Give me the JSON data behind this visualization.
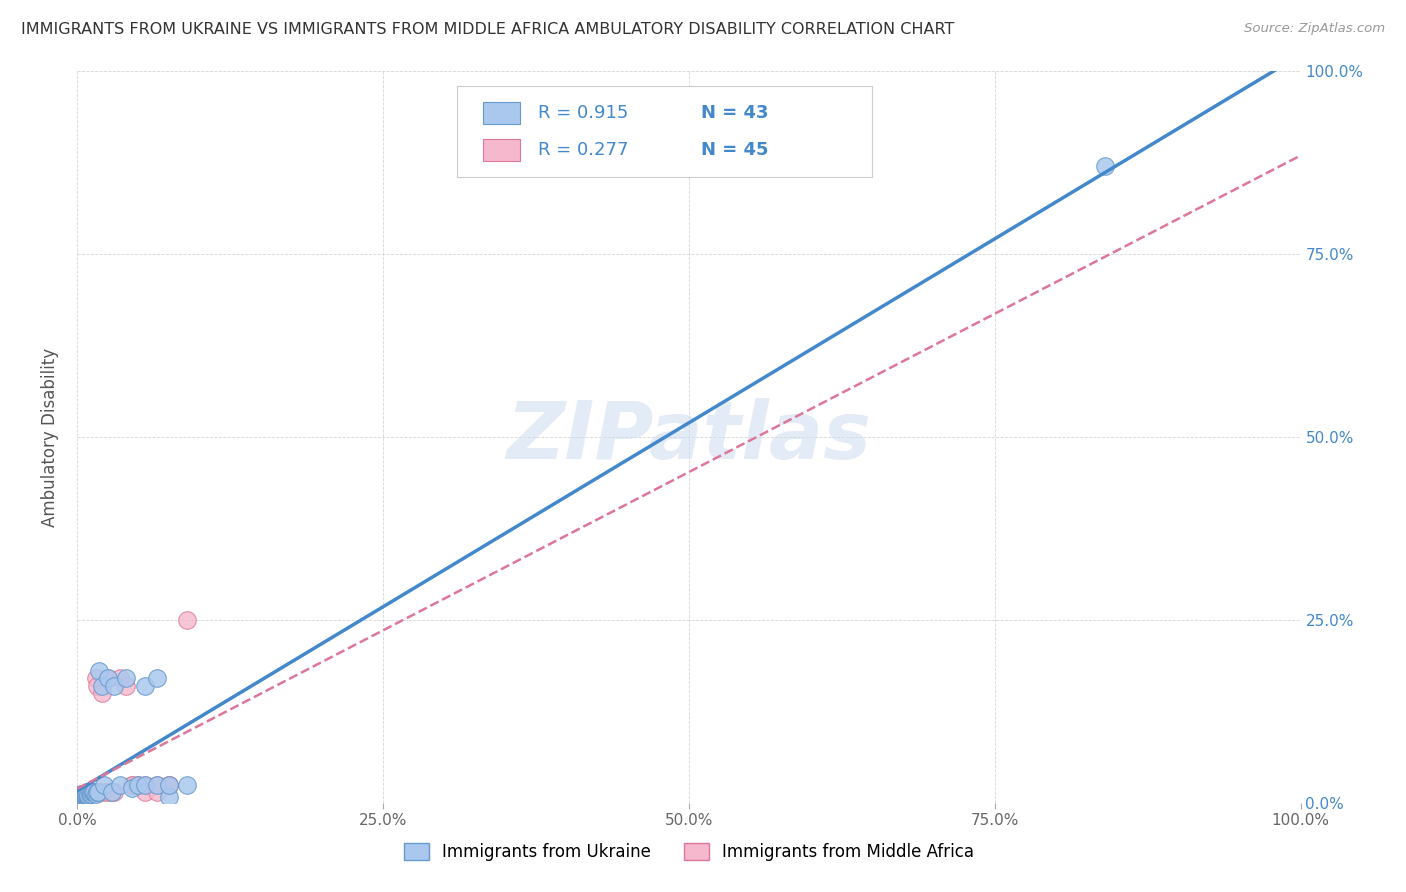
{
  "title": "IMMIGRANTS FROM UKRAINE VS IMMIGRANTS FROM MIDDLE AFRICA AMBULATORY DISABILITY CORRELATION CHART",
  "source": "Source: ZipAtlas.com",
  "ylabel": "Ambulatory Disability",
  "xlim": [
    0,
    1.0
  ],
  "ylim": [
    0,
    1.0
  ],
  "x_ticks": [
    0.0,
    0.25,
    0.5,
    0.75,
    1.0
  ],
  "y_ticks": [
    0.0,
    0.25,
    0.5,
    0.75,
    1.0
  ],
  "x_tick_labels": [
    "0.0%",
    "25.0%",
    "50.0%",
    "75.0%",
    "100.0%"
  ],
  "y_tick_labels": [
    "0.0%",
    "25.0%",
    "50.0%",
    "75.0%",
    "100.0%"
  ],
  "ukraine_color": "#aac8ee",
  "ukraine_edge_color": "#6699cc",
  "middle_africa_color": "#f5b8cc",
  "middle_africa_edge_color": "#dd7799",
  "ukraine_R": 0.915,
  "ukraine_N": 43,
  "middle_africa_R": 0.277,
  "middle_africa_N": 45,
  "ukraine_line_color": "#4488cc",
  "middle_africa_line_color": "#dd7799",
  "r_n_text_color": "#4488cc",
  "watermark": "ZIPatlas",
  "legend_ukraine_label": "Immigrants from Ukraine",
  "legend_middle_africa_label": "Immigrants from Middle Africa",
  "background_color": "#ffffff",
  "grid_color": "#cccccc",
  "title_color": "#333333",
  "axis_label_color": "#555555",
  "tick_label_color_right": "#4488cc",
  "ukraine_x": [
    0.001,
    0.002,
    0.002,
    0.003,
    0.003,
    0.004,
    0.004,
    0.005,
    0.005,
    0.006,
    0.006,
    0.007,
    0.007,
    0.008,
    0.008,
    0.009,
    0.01,
    0.01,
    0.011,
    0.012,
    0.013,
    0.014,
    0.015,
    0.016,
    0.017,
    0.018,
    0.02,
    0.022,
    0.025,
    0.028,
    0.03,
    0.035,
    0.04,
    0.045,
    0.05,
    0.055,
    0.065,
    0.075,
    0.055,
    0.065,
    0.075,
    0.09,
    0.84
  ],
  "ukraine_y": [
    0.008,
    0.008,
    0.01,
    0.008,
    0.012,
    0.01,
    0.01,
    0.01,
    0.012,
    0.01,
    0.012,
    0.01,
    0.012,
    0.012,
    0.015,
    0.01,
    0.012,
    0.015,
    0.012,
    0.015,
    0.015,
    0.015,
    0.012,
    0.015,
    0.015,
    0.18,
    0.16,
    0.025,
    0.17,
    0.015,
    0.16,
    0.025,
    0.17,
    0.02,
    0.025,
    0.025,
    0.025,
    0.008,
    0.16,
    0.17,
    0.025,
    0.025,
    0.87
  ],
  "middle_africa_x": [
    0.001,
    0.001,
    0.002,
    0.002,
    0.003,
    0.003,
    0.004,
    0.004,
    0.005,
    0.005,
    0.006,
    0.006,
    0.007,
    0.007,
    0.008,
    0.008,
    0.009,
    0.009,
    0.01,
    0.01,
    0.011,
    0.012,
    0.013,
    0.014,
    0.015,
    0.016,
    0.018,
    0.02,
    0.022,
    0.025,
    0.025,
    0.028,
    0.03,
    0.035,
    0.04,
    0.045,
    0.05,
    0.055,
    0.065,
    0.075,
    0.055,
    0.065,
    0.075,
    0.09,
    0.045
  ],
  "middle_africa_y": [
    0.008,
    0.01,
    0.008,
    0.01,
    0.008,
    0.01,
    0.01,
    0.012,
    0.01,
    0.012,
    0.01,
    0.012,
    0.01,
    0.012,
    0.01,
    0.012,
    0.012,
    0.015,
    0.012,
    0.015,
    0.015,
    0.015,
    0.015,
    0.015,
    0.17,
    0.16,
    0.015,
    0.15,
    0.015,
    0.015,
    0.17,
    0.015,
    0.015,
    0.17,
    0.16,
    0.025,
    0.025,
    0.025,
    0.025,
    0.025,
    0.015,
    0.015,
    0.025,
    0.25,
    0.025
  ]
}
